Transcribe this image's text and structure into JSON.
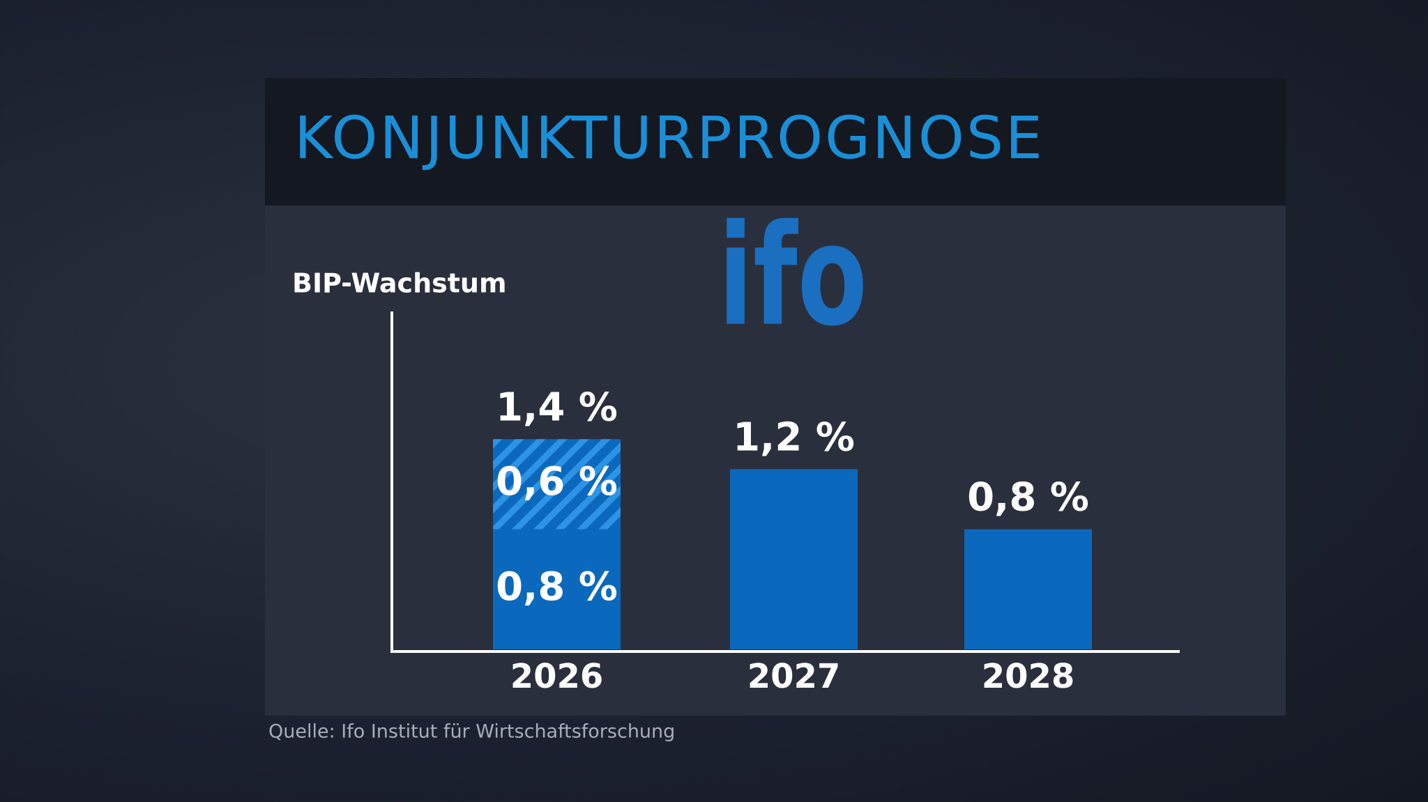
{
  "chart_data": {
    "type": "bar",
    "title": "KONJUNKTURPROGNOSE",
    "logo": "ifo",
    "y_label": "BIP-Wachstum",
    "categories": [
      "2026",
      "2027",
      "2028"
    ],
    "stacked": true,
    "series": [
      {
        "color": "#0a69bd",
        "values": [
          0.8,
          1.2,
          0.8
        ],
        "value_labels": [
          "0,8 %",
          "1,2 %",
          "0,8 %"
        ]
      },
      {
        "color": "#0a69bd",
        "pattern": "hatch",
        "values": [
          0.6,
          null,
          null
        ],
        "value_labels": [
          "0,6 %",
          null,
          null
        ]
      }
    ],
    "totals": [
      1.4,
      null,
      null
    ],
    "total_labels": [
      "1,4 %",
      null,
      null
    ],
    "ylim": [
      0,
      2.25
    ],
    "source": "Quelle: Ifo Institut für Wirtschaftsforschung"
  }
}
